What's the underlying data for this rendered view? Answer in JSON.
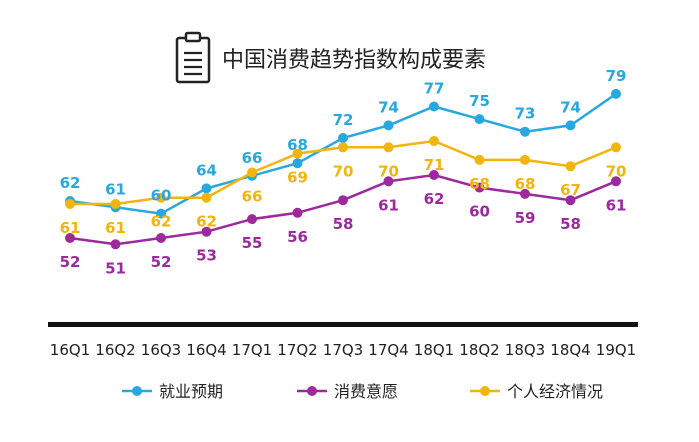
{
  "chart_data": {
    "type": "line",
    "title": "中国消费趋势指数构成要素",
    "categories": [
      "16Q1",
      "16Q2",
      "16Q3",
      "16Q4",
      "17Q1",
      "17Q2",
      "17Q3",
      "17Q4",
      "18Q1",
      "18Q2",
      "18Q3",
      "18Q4",
      "19Q1"
    ],
    "series": [
      {
        "name": "就业预期",
        "color": "#29a8e0",
        "values": [
          62,
          61,
          60,
          64,
          66,
          68,
          72,
          74,
          77,
          75,
          73,
          74,
          79
        ]
      },
      {
        "name": "消费意愿",
        "color": "#9c2a9c",
        "values": [
          52,
          51,
          52,
          53,
          55,
          56,
          58,
          61,
          62,
          60,
          59,
          58,
          61
        ]
      },
      {
        "name": "个人经济情况",
        "color": "#f2b40f",
        "values": [
          61,
          61,
          62,
          62,
          66,
          69,
          70,
          70,
          71,
          68,
          68,
          67,
          70
        ]
      }
    ],
    "legend_position": "bottom",
    "grid": false
  }
}
